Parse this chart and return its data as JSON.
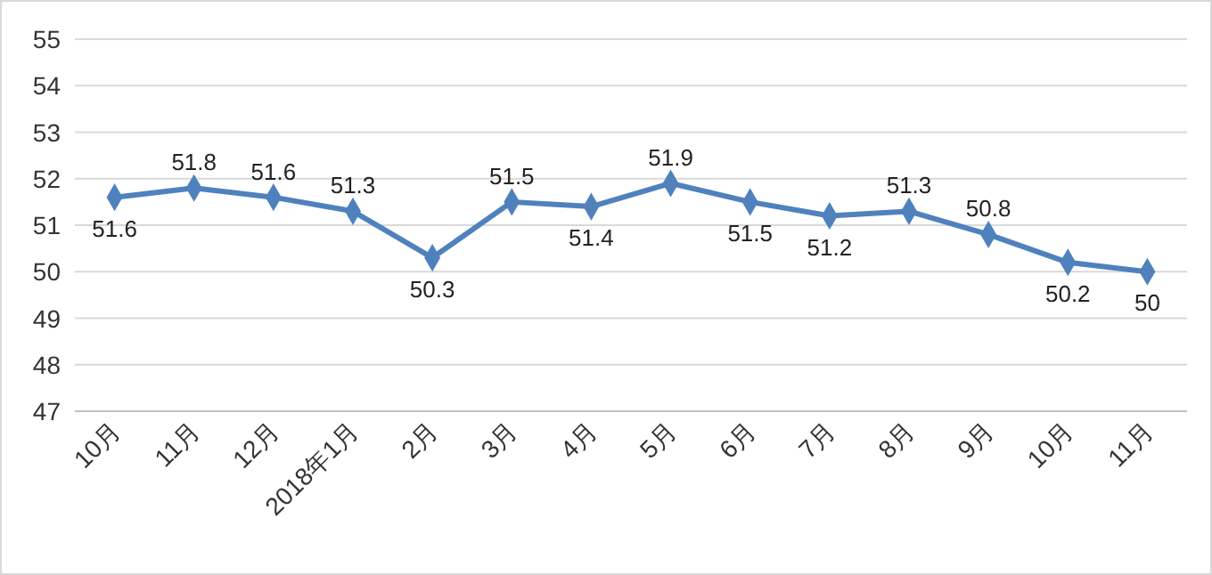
{
  "chart_data": {
    "type": "line",
    "categories": [
      "10月",
      "11月",
      "12月",
      "2018年1月",
      "2月",
      "3月",
      "4月",
      "5月",
      "6月",
      "7月",
      "8月",
      "9月",
      "10月",
      "11月"
    ],
    "series": [
      {
        "color": "#4f81bd",
        "values": [
          51.6,
          51.8,
          51.6,
          51.3,
          50.3,
          51.5,
          51.4,
          51.9,
          51.5,
          51.2,
          51.3,
          50.8,
          50.2,
          50
        ]
      }
    ],
    "ylim": [
      47,
      55
    ],
    "yticks": [
      47,
      48,
      49,
      50,
      51,
      52,
      53,
      54,
      55
    ],
    "grid": "y",
    "marker": "diamond",
    "line_style": "solid",
    "data_labels": true
  }
}
